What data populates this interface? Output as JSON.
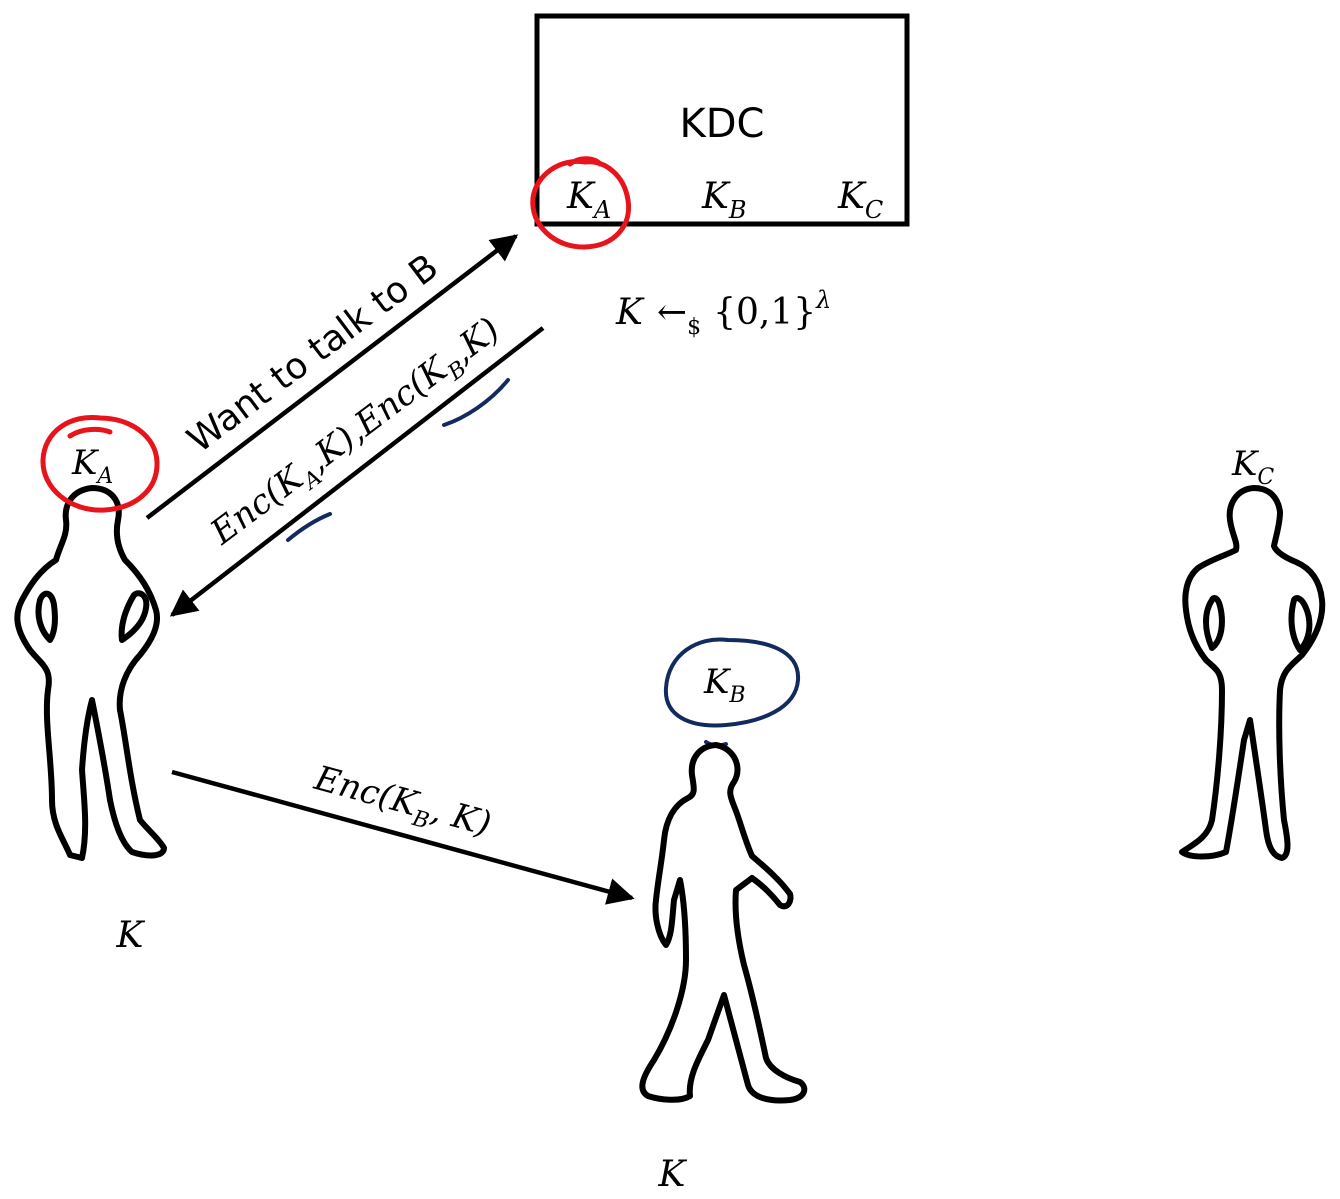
{
  "kdc": {
    "title": "KDC",
    "keys": [
      {
        "sym": "K",
        "sub": "A"
      },
      {
        "sym": "K",
        "sub": "B"
      },
      {
        "sym": "K",
        "sub": "C"
      }
    ]
  },
  "sampling": {
    "K": "K",
    "arrow": "←",
    "dollar": "$",
    "set": "{0,1}",
    "lambda": "λ"
  },
  "messages": {
    "request": "Want to talk to B",
    "response": {
      "a": "Enc(K",
      "a_sub": "A",
      "b": ",K),Enc(K",
      "b_sub": "B",
      "c": ",K)"
    },
    "forward": {
      "a": "Enc(K",
      "a_sub": "B",
      "b": ", K)"
    }
  },
  "parties": {
    "alice": {
      "head_key": {
        "sym": "K",
        "sub": "A"
      },
      "result": "K"
    },
    "bob": {
      "head_key": {
        "sym": "K",
        "sub": "B"
      },
      "result": "K"
    },
    "carol": {
      "head_key": {
        "sym": "K",
        "sub": "C"
      }
    }
  },
  "colors": {
    "ink": "#000000",
    "highlight_red": "#e8141b",
    "highlight_navy": "#132a5e"
  }
}
